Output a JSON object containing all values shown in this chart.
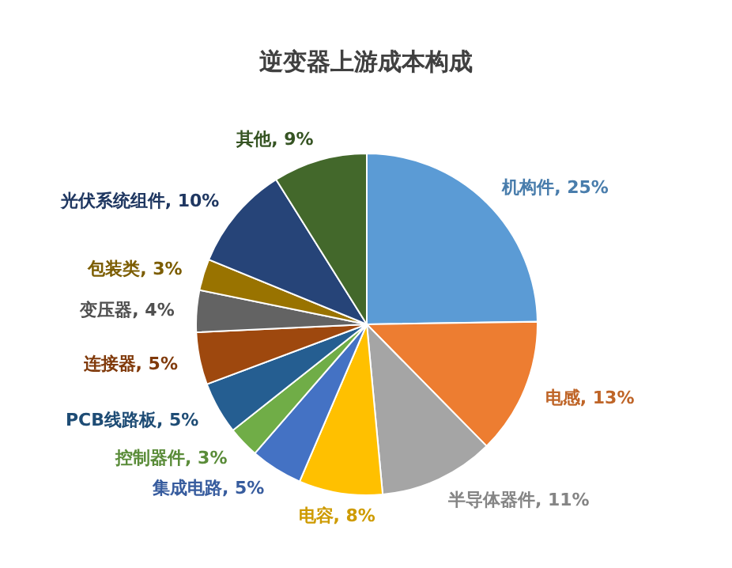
{
  "chart_data": {
    "type": "pie",
    "title": "逆变器上游成本构成",
    "categories": [
      "机构件",
      "电感",
      "半导体器件",
      "电容",
      "集成电路",
      "控制器件",
      "PCB线路板",
      "连接器",
      "变压器",
      "包装类",
      "光伏系统组件",
      "其他"
    ],
    "values": [
      25,
      13,
      11,
      8,
      5,
      3,
      5,
      5,
      4,
      3,
      10,
      9
    ],
    "value_labels": [
      "25%",
      "13%",
      "11%",
      "8%",
      "5%",
      "3%",
      "5%",
      "5%",
      "4%",
      "3%",
      "10%",
      "9%"
    ],
    "colors": [
      "#5b9bd5",
      "#ed7d31",
      "#a5a5a5",
      "#ffc000",
      "#4472c4",
      "#70ad47",
      "#255e91",
      "#9e480e",
      "#636363",
      "#997300",
      "#264478",
      "#43682b"
    ]
  }
}
